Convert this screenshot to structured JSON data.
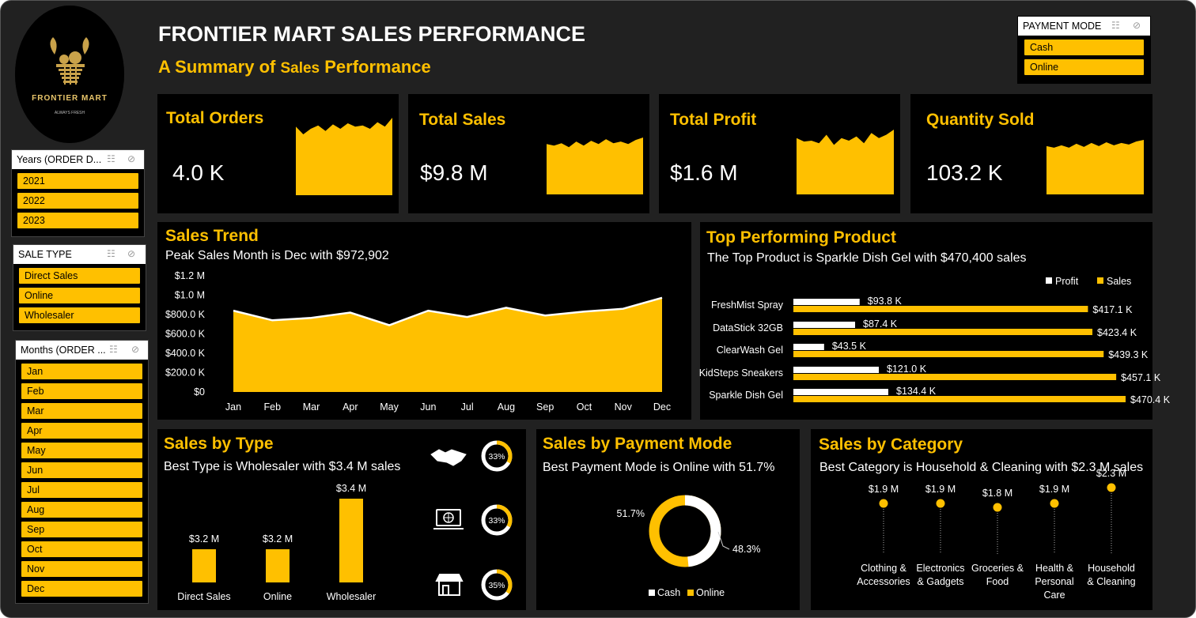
{
  "header": {
    "title": "FRONTIER MART SALES PERFORMANCE",
    "subtitle_part1": "A Summary of ",
    "subtitle_part2": "Sales",
    "subtitle_part3": " Performance"
  },
  "logo": {
    "brand": "FRONTIER MART",
    "tagline": "ALWAYS FRESH"
  },
  "colors": {
    "accent": "#FFC000",
    "card": "#000000",
    "background": "#212121",
    "white": "#FFFFFF"
  },
  "slicers": {
    "payment_mode": {
      "title": "PAYMENT MODE",
      "items": [
        "Cash",
        "Online"
      ]
    },
    "years": {
      "title": "Years (ORDER D...",
      "items": [
        "2021",
        "2022",
        "2023"
      ]
    },
    "sale_type": {
      "title": "SALE TYPE",
      "items": [
        "Direct Sales",
        "Online",
        "Wholesaler"
      ]
    },
    "months": {
      "title": "Months (ORDER ...",
      "items": [
        "Jan",
        "Feb",
        "Mar",
        "Apr",
        "May",
        "Jun",
        "Jul",
        "Aug",
        "Sep",
        "Oct",
        "Nov",
        "Dec"
      ]
    }
  },
  "kpis": [
    {
      "title": "Total Orders",
      "value": "4.0 K",
      "spark": [
        62,
        55,
        60,
        63,
        58,
        64,
        60,
        65,
        62,
        63,
        60,
        66,
        62,
        70
      ]
    },
    {
      "title": "Total Sales",
      "value": "$9.8 M",
      "spark": [
        62,
        60,
        63,
        58,
        65,
        60,
        66,
        62,
        68,
        63,
        65,
        62,
        67,
        70
      ]
    },
    {
      "title": "Total Profit",
      "value": "$1.6 M",
      "spark": [
        66,
        62,
        63,
        60,
        70,
        58,
        66,
        63,
        68,
        60,
        72,
        66,
        70,
        76
      ]
    },
    {
      "title": "Quantity Sold",
      "value": "103.2 K",
      "spark": [
        62,
        60,
        63,
        60,
        65,
        61,
        66,
        62,
        67,
        63,
        66,
        64,
        68,
        70
      ]
    }
  ],
  "sales_trend": {
    "title": "Sales Trend",
    "subtitle": "Peak Sales Month is Dec with $972,902",
    "y_ticks": [
      "$0",
      "$200.0 K",
      "$400.0 K",
      "$600.0 K",
      "$800.0 K",
      "$1.0 M",
      "$1.2 M"
    ]
  },
  "top_product": {
    "title": "Top Performing Product",
    "subtitle": "The Top Product is Sparkle Dish Gel with $470,400 sales",
    "legend": [
      "Profit",
      "Sales"
    ]
  },
  "sales_by_type": {
    "title": "Sales by Type",
    "subtitle": "Best Type is Wholesaler with $3.4 M sales",
    "bar_labels": [
      "$3.2 M",
      "$3.2 M",
      "$3.4 M"
    ],
    "donuts": [
      {
        "icon": "handshake-icon",
        "label": "33%",
        "pct": 33
      },
      {
        "icon": "laptop-globe-icon",
        "label": "33%",
        "pct": 33
      },
      {
        "icon": "store-icon",
        "label": "35%",
        "pct": 35
      }
    ]
  },
  "payment_mode": {
    "title": "Sales by Payment Mode",
    "subtitle": "Best Payment Mode is Online with 51.7%",
    "labels": [
      "51.7%",
      "48.3%"
    ],
    "legend": [
      "Cash",
      "Online"
    ]
  },
  "sales_by_category": {
    "title": "Sales by Category",
    "subtitle": "Best Category is Household & Cleaning with $2.3 M sales",
    "items": [
      {
        "label": "$1.9 M",
        "name_lines": [
          "Clothing &",
          "Accessories"
        ]
      },
      {
        "label": "$1.9 M",
        "name_lines": [
          "Electronics",
          "& Gadgets"
        ]
      },
      {
        "label": "$1.8 M",
        "name_lines": [
          "Groceries &",
          "Food"
        ]
      },
      {
        "label": "$1.9 M",
        "name_lines": [
          "Health &",
          "Personal",
          "Care"
        ]
      },
      {
        "label": "$2.3 M",
        "name_lines": [
          "Household",
          "& Cleaning"
        ]
      }
    ]
  },
  "chart_data": [
    {
      "type": "area",
      "title": "Sales Trend",
      "categories": [
        "Jan",
        "Feb",
        "Mar",
        "Apr",
        "May",
        "Jun",
        "Jul",
        "Aug",
        "Sep",
        "Oct",
        "Nov",
        "Dec"
      ],
      "values": [
        840000,
        740000,
        765000,
        820000,
        690000,
        840000,
        775000,
        870000,
        790000,
        830000,
        860000,
        972902
      ],
      "ylim": [
        0,
        1200000
      ]
    },
    {
      "type": "bar",
      "title": "Top Performing Product",
      "orientation": "horizontal",
      "categories": [
        "FreshMist Spray",
        "DataStick 32GB",
        "ClearWash Gel",
        "KidSteps Sneakers",
        "Sparkle Dish Gel"
      ],
      "series": [
        {
          "name": "Profit",
          "values": [
            93800,
            87400,
            43500,
            121000,
            134400
          ],
          "labels": [
            "$93.8 K",
            "$87.4 K",
            "$43.5 K",
            "$121.0 K",
            "$134.4 K"
          ]
        },
        {
          "name": "Sales",
          "values": [
            417100,
            423400,
            439300,
            457100,
            470400
          ],
          "labels": [
            "$417.1 K",
            "$423.4 K",
            "$439.3 K",
            "$457.1 K",
            "$470.4 K"
          ]
        }
      ],
      "legend_position": "top-right"
    },
    {
      "type": "bar",
      "title": "Sales by Type",
      "categories": [
        "Direct Sales",
        "Online",
        "Wholesaler"
      ],
      "values": [
        3.2,
        3.2,
        3.4
      ]
    },
    {
      "type": "pie",
      "title": "Sales by Payment Mode",
      "categories": [
        "Cash",
        "Online"
      ],
      "values": [
        48.3,
        51.7
      ]
    },
    {
      "type": "scatter",
      "title": "Sales by Category",
      "categories": [
        "Clothing & Accessories",
        "Electronics & Gadgets",
        "Groceries & Food",
        "Health & Personal Care",
        "Household & Cleaning"
      ],
      "values": [
        1.9,
        1.9,
        1.8,
        1.9,
        2.3
      ]
    }
  ]
}
